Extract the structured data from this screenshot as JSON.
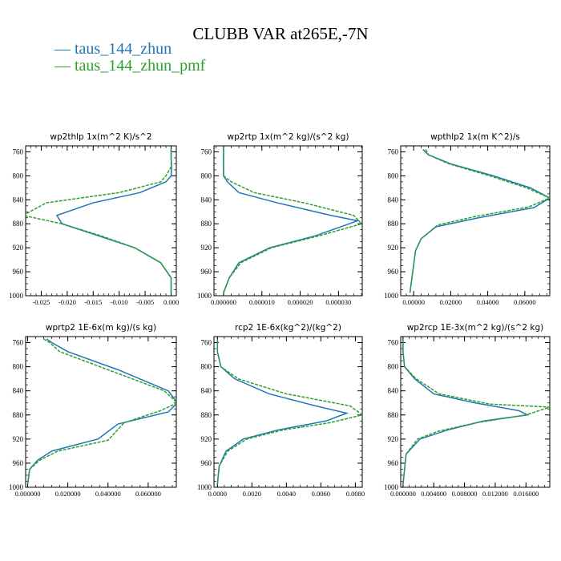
{
  "title": "CLUBB VAR at265E,-7N",
  "legend": [
    {
      "label": "taus_144_zhun",
      "color": "#1f77b4"
    },
    {
      "label": "taus_144_zhun_pmf",
      "color": "#2ca02c"
    }
  ],
  "chart_data": [
    {
      "type": "line",
      "title": "wp2thlp   1x(m^2 K)/s^2",
      "xlim": [
        -0.028,
        0.001
      ],
      "xticks": [
        -0.025,
        -0.02,
        -0.015,
        -0.01,
        -0.005,
        0.0
      ],
      "xticklabels": [
        "-0.025",
        "-0.020",
        "-0.015",
        "-0.010",
        "-0.005",
        "0.000"
      ],
      "ylim": [
        750,
        1000
      ],
      "yticks": [
        760,
        800,
        840,
        880,
        920,
        960,
        1000
      ],
      "series": [
        {
          "name": "taus_144_zhun",
          "x": [
            0.0,
            0.0,
            0.0001,
            0.0,
            -0.001,
            -0.006,
            -0.015,
            -0.022,
            -0.021,
            -0.014,
            -0.007,
            -0.002,
            0.0,
            0.0
          ],
          "y": [
            755,
            770,
            785,
            800,
            810,
            828,
            845,
            866,
            880,
            900,
            920,
            945,
            970,
            995
          ]
        },
        {
          "name": "taus_144_zhun_pmf",
          "x": [
            0.0,
            0.0,
            0.0,
            -0.001,
            -0.002,
            -0.01,
            -0.024,
            -0.0285,
            -0.021,
            -0.0135,
            -0.007,
            -0.002,
            0.0,
            0.0
          ],
          "y": [
            755,
            770,
            785,
            800,
            810,
            828,
            845,
            866,
            880,
            900,
            920,
            945,
            970,
            995
          ]
        }
      ]
    },
    {
      "type": "line",
      "title": "wp2rtp   1x(m^2 kg)/(s^2 kg)",
      "xlim": [
        -2.5e-06,
        3.62e-05
      ],
      "xticks": [
        0.0,
        1e-05,
        2e-05,
        3e-05
      ],
      "xticklabels": [
        "0.000000",
        "0.000010",
        "0.000020",
        "0.000030"
      ],
      "ylim": [
        750,
        1000
      ],
      "yticks": [
        760,
        800,
        840,
        880,
        920,
        960,
        1000
      ],
      "series": [
        {
          "name": "taus_144_zhun",
          "x": [
            0.0,
            0.0,
            0.0,
            0.0,
            1e-06,
            4e-06,
            1.4e-05,
            2.8e-05,
            3.5e-05,
            2.4e-05,
            1.2e-05,
            4e-06,
            1.5e-06,
            0.0
          ],
          "y": [
            755,
            770,
            785,
            800,
            810,
            828,
            845,
            866,
            875,
            900,
            920,
            945,
            970,
            995
          ]
        },
        {
          "name": "taus_144_zhun_pmf",
          "x": [
            0.0,
            0.0,
            0.0,
            0.0,
            2e-06,
            8e-06,
            2.1e-05,
            3.4e-05,
            3.6e-05,
            2.5e-05,
            1.25e-05,
            4.5e-06,
            1.5e-06,
            0.0
          ],
          "y": [
            755,
            770,
            785,
            800,
            810,
            828,
            845,
            866,
            880,
            900,
            920,
            945,
            970,
            995
          ]
        }
      ]
    },
    {
      "type": "line",
      "title": "wpthlp2   1x(m K^2)/s",
      "xlim": [
        -0.007,
        0.0735
      ],
      "xticks": [
        0.0,
        0.02,
        0.04,
        0.06
      ],
      "xticklabels": [
        "0.00000",
        "0.02000",
        "0.04000",
        "0.06000"
      ],
      "ylim": [
        750,
        1000
      ],
      "yticks": [
        760,
        800,
        840,
        880,
        920,
        960,
        1000
      ],
      "series": [
        {
          "name": "taus_144_zhun",
          "x": [
            0.005,
            0.008,
            0.02,
            0.043,
            0.063,
            0.0735,
            0.065,
            0.035,
            0.012,
            0.004,
            0.001,
            -0.002
          ],
          "y": [
            756,
            765,
            780,
            800,
            820,
            837,
            853,
            870,
            885,
            905,
            925,
            995
          ]
        },
        {
          "name": "taus_144_zhun_pmf",
          "x": [
            0.0065,
            0.008,
            0.019,
            0.041,
            0.061,
            0.0735,
            0.062,
            0.033,
            0.013,
            0.004,
            0.001,
            -0.002
          ],
          "y": [
            756,
            765,
            780,
            800,
            820,
            837,
            852,
            868,
            882,
            905,
            925,
            995
          ]
        }
      ]
    },
    {
      "type": "line",
      "title": "wprtp2   1E-6x(m kg)/(s kg)",
      "xlim": [
        -0.001,
        0.074
      ],
      "xticks": [
        0.0,
        0.02,
        0.04,
        0.06
      ],
      "xticklabels": [
        "0.000000",
        "0.020000",
        "0.040000",
        "0.060000"
      ],
      "ylim": [
        750,
        1000
      ],
      "yticks": [
        760,
        800,
        840,
        880,
        920,
        960,
        1000
      ],
      "series": [
        {
          "name": "taus_144_zhun",
          "x": [
            0.0095,
            0.012,
            0.02,
            0.045,
            0.07,
            0.0745,
            0.07,
            0.045,
            0.035,
            0.012,
            0.005,
            0.001,
            0.0
          ],
          "y": [
            754,
            760,
            775,
            805,
            840,
            860,
            875,
            895,
            920,
            940,
            955,
            970,
            995
          ]
        },
        {
          "name": "taus_144_zhun_pmf",
          "x": [
            0.008,
            0.011,
            0.016,
            0.04,
            0.068,
            0.0745,
            0.066,
            0.048,
            0.04,
            0.015,
            0.006,
            0.001,
            0.0
          ],
          "y": [
            754,
            760,
            775,
            805,
            840,
            860,
            873,
            893,
            922,
            940,
            955,
            970,
            995
          ]
        }
      ]
    },
    {
      "type": "line",
      "title": "rcp2   1E-6x(kg^2)/(kg^2)",
      "xlim": [
        -0.0002,
        0.0084
      ],
      "xticks": [
        0.0,
        0.002,
        0.004,
        0.006,
        0.008
      ],
      "xticklabels": [
        "0.0000",
        "0.0020",
        "0.0040",
        "0.0060",
        "0.0080"
      ],
      "ylim": [
        750,
        1000
      ],
      "yticks": [
        760,
        800,
        840,
        880,
        920,
        960,
        1000
      ],
      "series": [
        {
          "name": "taus_144_zhun",
          "x": [
            0.0,
            0.0,
            0.0002,
            0.001,
            0.003,
            0.0057,
            0.0075,
            0.0063,
            0.0035,
            0.0015,
            0.0005,
            0.0001,
            0.0
          ],
          "y": [
            755,
            775,
            800,
            820,
            845,
            865,
            877,
            890,
            905,
            920,
            940,
            965,
            995
          ]
        },
        {
          "name": "taus_144_zhun_pmf",
          "x": [
            0.0,
            0.0,
            0.0002,
            0.0012,
            0.004,
            0.0077,
            0.0084,
            0.0065,
            0.0038,
            0.0017,
            0.0006,
            0.0001,
            0.0
          ],
          "y": [
            755,
            775,
            800,
            820,
            845,
            865,
            880,
            893,
            905,
            920,
            940,
            965,
            995
          ]
        }
      ]
    },
    {
      "type": "line",
      "title": "wp2rcp   1E-3x(m^2 kg)/(s^2 kg)",
      "xlim": [
        -0.0003,
        0.0191
      ],
      "xticks": [
        0.0,
        0.004,
        0.008,
        0.012,
        0.016
      ],
      "xticklabels": [
        "0.000000",
        "0.004000",
        "0.008000",
        "0.012000",
        "0.016000"
      ],
      "ylim": [
        750,
        1000
      ],
      "yticks": [
        760,
        800,
        840,
        880,
        920,
        960,
        1000
      ],
      "series": [
        {
          "name": "taus_144_zhun",
          "x": [
            0.0,
            0.0,
            0.0002,
            0.0015,
            0.004,
            0.0094,
            0.0151,
            0.0162,
            0.0105,
            0.0058,
            0.0022,
            0.0004,
            0.0
          ],
          "y": [
            755,
            775,
            800,
            820,
            845,
            860,
            873,
            880,
            890,
            905,
            920,
            945,
            995
          ]
        },
        {
          "name": "taus_144_zhun_pmf",
          "x": [
            0.0,
            0.0,
            0.0002,
            0.0017,
            0.0047,
            0.0113,
            0.0191,
            0.016,
            0.0095,
            0.0046,
            0.0019,
            0.0004,
            0.0
          ],
          "y": [
            755,
            775,
            800,
            820,
            845,
            862,
            867,
            880,
            893,
            907,
            920,
            945,
            995
          ]
        }
      ]
    }
  ]
}
